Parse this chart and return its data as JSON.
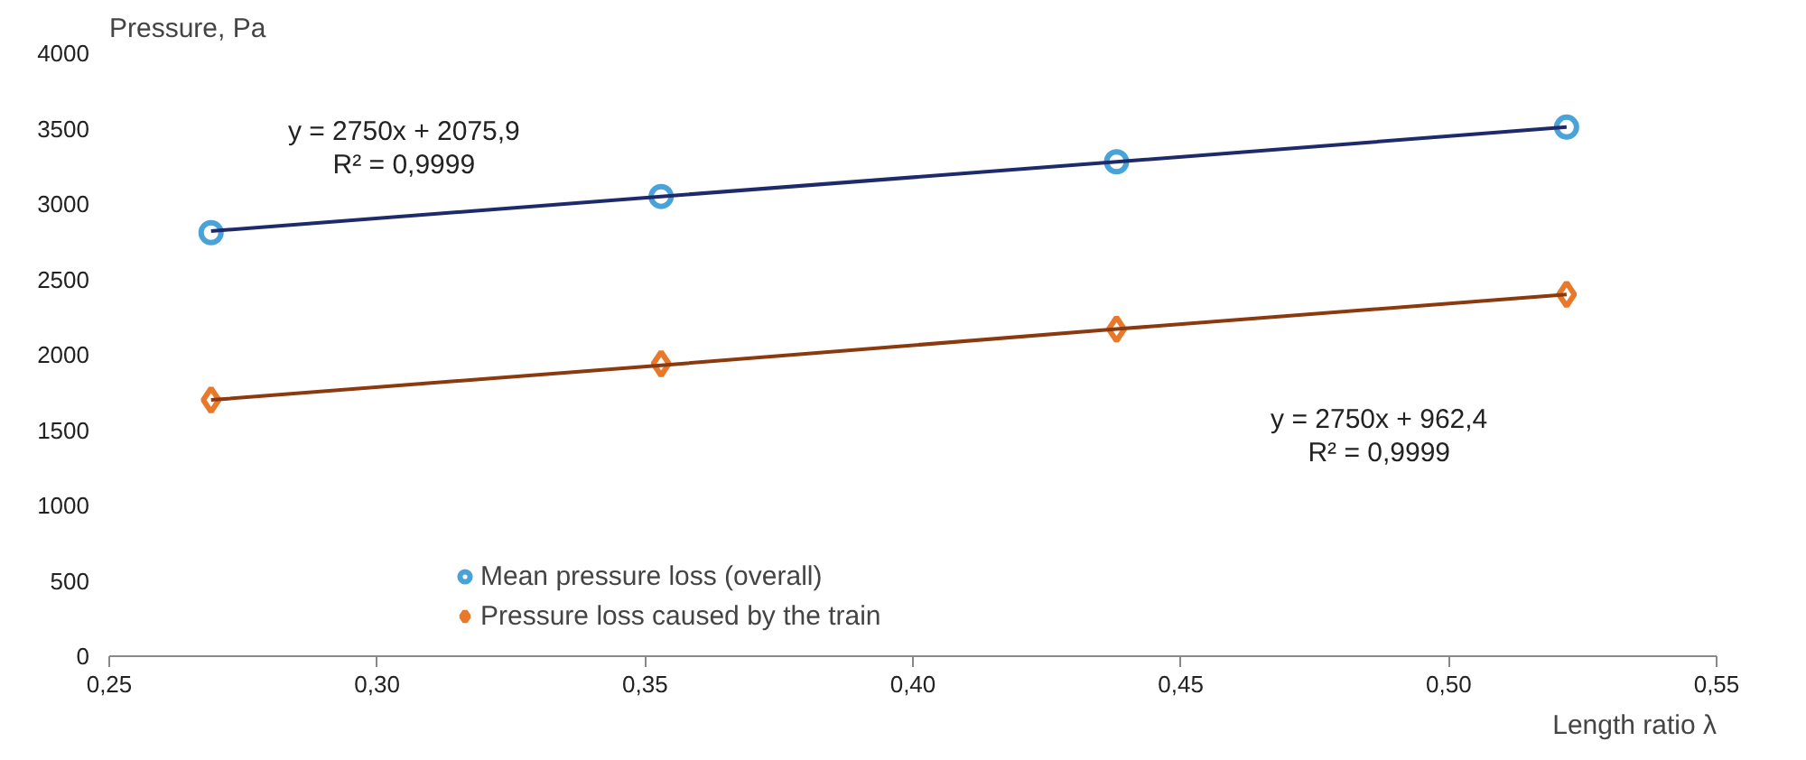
{
  "chart_data": {
    "type": "scatter",
    "xlabel": "Length ratio λ",
    "ylabel": "Pressure, Pa",
    "x": [
      0.269,
      0.353,
      0.438,
      0.522
    ],
    "series": [
      {
        "name": "Mean pressure loss (overall)",
        "color": "#4aa3d8",
        "marker": "circle",
        "values": [
          2810,
          3050,
          3280,
          3510
        ]
      },
      {
        "name": "Pressure loss caused by the train",
        "color": "#e8792b",
        "marker": "diamond",
        "values": [
          1700,
          1940,
          2170,
          2400
        ]
      },
      {
        "type": "line",
        "color": "#1f2a6b",
        "values": [
          2820,
          3050,
          3280,
          3510
        ]
      },
      {
        "type": "line",
        "color": "#8b3a0f",
        "values": [
          1700,
          1930,
          2170,
          2400
        ]
      }
    ],
    "annotations": [
      "y = 2750x + 2075,9",
      "R² = 0,9999",
      "y = 2750x + 962,4",
      "R² = 0,9999"
    ],
    "xlim": [
      0.25,
      0.55
    ],
    "xticks": [
      {
        "value": 0.25,
        "label": "0,25"
      },
      {
        "value": 0.3,
        "label": "0,30"
      },
      {
        "value": 0.35,
        "label": "0,35"
      },
      {
        "value": 0.4,
        "label": "0,40"
      },
      {
        "value": 0.45,
        "label": "0,45"
      },
      {
        "value": 0.5,
        "label": "0,50"
      },
      {
        "value": 0.55,
        "label": "0,55"
      }
    ],
    "ylim": [
      0,
      4000
    ],
    "yticks": [
      0,
      500,
      1000,
      1500,
      2000,
      2500,
      3000,
      3500,
      4000
    ],
    "legend": "bottom",
    "line_style": "solid"
  }
}
